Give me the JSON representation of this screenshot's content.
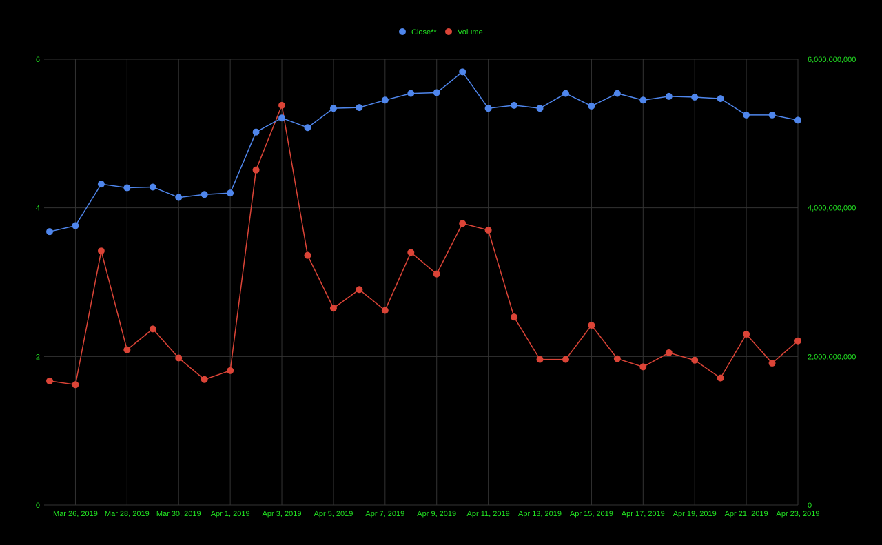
{
  "chart_data": {
    "type": "line",
    "title": "",
    "xlabel": "",
    "ylabel": "",
    "y2label": "",
    "x": [
      "Mar 25, 2019",
      "Mar 26, 2019",
      "Mar 27, 2019",
      "Mar 28, 2019",
      "Mar 29, 2019",
      "Mar 30, 2019",
      "Mar 31, 2019",
      "Apr 1, 2019",
      "Apr 2, 2019",
      "Apr 3, 2019",
      "Apr 4, 2019",
      "Apr 5, 2019",
      "Apr 6, 2019",
      "Apr 7, 2019",
      "Apr 8, 2019",
      "Apr 9, 2019",
      "Apr 10, 2019",
      "Apr 11, 2019",
      "Apr 12, 2019",
      "Apr 13, 2019",
      "Apr 14, 2019",
      "Apr 15, 2019",
      "Apr 16, 2019",
      "Apr 17, 2019",
      "Apr 18, 2019",
      "Apr 19, 2019",
      "Apr 20, 2019",
      "Apr 21, 2019",
      "Apr 22, 2019",
      "Apr 23, 2019"
    ],
    "x_tick_labels": [
      "Mar 26, 2019",
      "Mar 28, 2019",
      "Mar 30, 2019",
      "Apr 1, 2019",
      "Apr 3, 2019",
      "Apr 5, 2019",
      "Apr 7, 2019",
      "Apr 9, 2019",
      "Apr 11, 2019",
      "Apr 13, 2019",
      "Apr 15, 2019",
      "Apr 17, 2019",
      "Apr 19, 2019",
      "Apr 21, 2019",
      "Apr 23, 2019"
    ],
    "x_tick_index": [
      1,
      3,
      5,
      7,
      9,
      11,
      13,
      15,
      17,
      19,
      21,
      23,
      25,
      27,
      29
    ],
    "y_left": {
      "range": [
        0,
        6
      ],
      "ticks": [
        0,
        2,
        4,
        6
      ],
      "tick_labels": [
        "0",
        "2",
        "4",
        "6"
      ]
    },
    "y_right": {
      "range": [
        0,
        6000000000
      ],
      "ticks": [
        0,
        2000000000,
        4000000000,
        6000000000
      ],
      "tick_labels": [
        "0",
        "2,000,000,000",
        "4,000,000,000",
        "6,000,000,000"
      ]
    },
    "grid": true,
    "legend": {
      "placement": "top-center"
    },
    "series": [
      {
        "name": "Close**",
        "axis": "left",
        "color": "#4f86ec",
        "values": [
          3.68,
          3.76,
          4.32,
          4.27,
          4.28,
          4.14,
          4.18,
          4.2,
          5.02,
          5.21,
          5.08,
          5.34,
          5.35,
          5.45,
          5.54,
          5.55,
          5.83,
          5.34,
          5.38,
          5.34,
          5.54,
          5.37,
          5.54,
          5.45,
          5.5,
          5.49,
          5.47,
          5.25,
          5.25,
          5.18
        ]
      },
      {
        "name": "Volume",
        "axis": "right",
        "color": "#db4437",
        "values": [
          1670000000,
          1620000000,
          3420000000,
          2090000000,
          2370000000,
          1980000000,
          1690000000,
          1810000000,
          4510000000,
          5380000000,
          3360000000,
          2650000000,
          2900000000,
          2620000000,
          3400000000,
          3110000000,
          3790000000,
          3700000000,
          2530000000,
          1960000000,
          1960000000,
          2420000000,
          1970000000,
          1860000000,
          2050000000,
          1950000000,
          1710000000,
          2300000000,
          1910000000,
          2210000000
        ]
      }
    ]
  },
  "colors": {
    "background": "#000000",
    "tick_text": "#22e422",
    "grid": "#333333"
  }
}
